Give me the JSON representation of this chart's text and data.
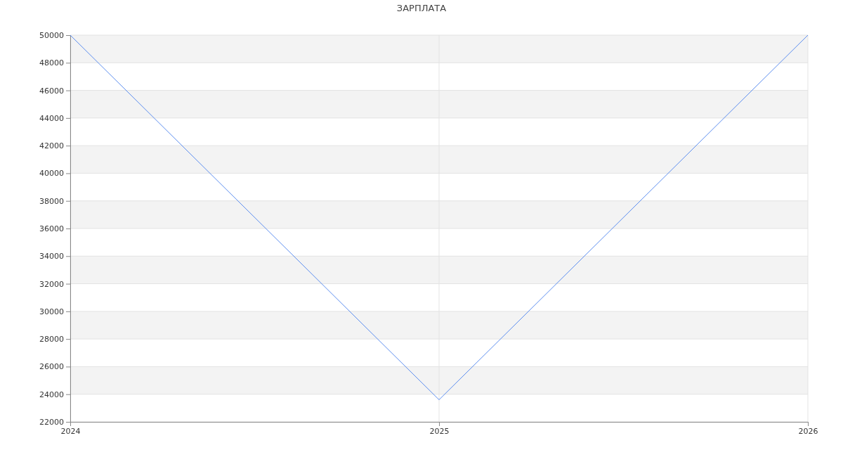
{
  "chart_data": {
    "type": "line",
    "title": "ЗАРПЛАТА",
    "x": [
      2024,
      2025,
      2026
    ],
    "series": [
      {
        "color": "#5b8def",
        "values": [
          50000,
          23600,
          50000
        ]
      }
    ],
    "xlim": [
      2024,
      2026
    ],
    "xticks": [
      2024,
      2025,
      2026
    ],
    "ylim": [
      22000,
      50000
    ],
    "yticks": [
      22000,
      24000,
      26000,
      28000,
      30000,
      32000,
      34000,
      36000,
      38000,
      40000,
      42000,
      44000,
      46000,
      48000,
      50000
    ],
    "grid": true,
    "marker": "none",
    "line_style": "solid"
  }
}
